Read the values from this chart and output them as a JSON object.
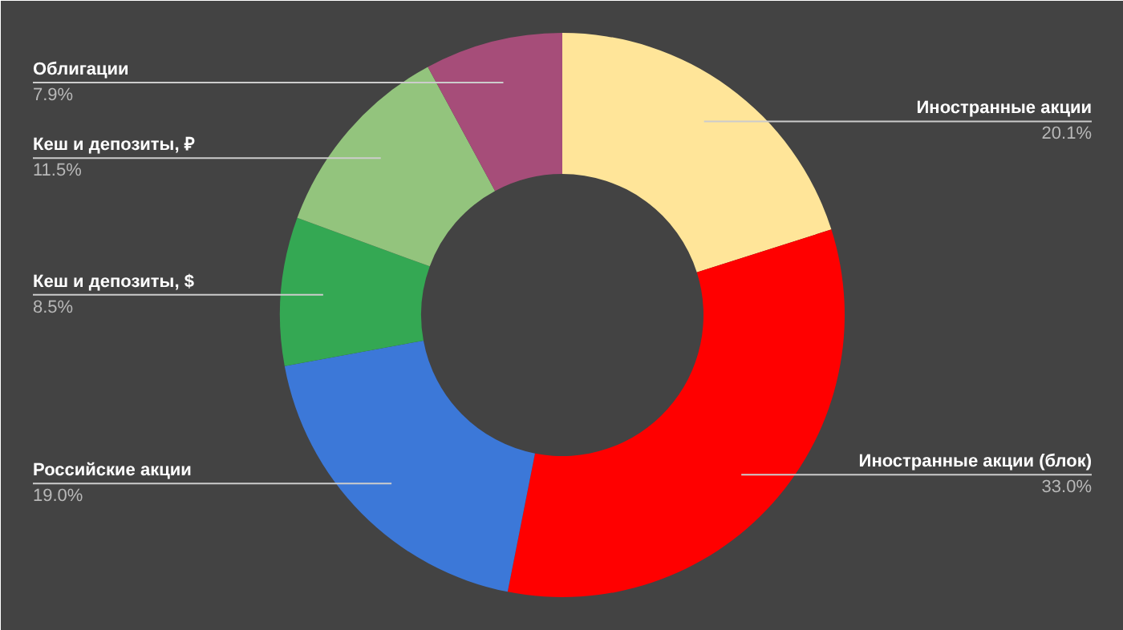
{
  "chart_data": {
    "type": "donut",
    "categories": [
      "Иностранные акции",
      "Иностранные акции (блок)",
      "Российские акции",
      "Кеш и депозиты, $",
      "Кеш и депозиты, ₽",
      "Облигации"
    ],
    "values": [
      20.1,
      33.0,
      19.0,
      8.5,
      11.5,
      7.9
    ],
    "value_labels": [
      "20.1%",
      "33.0%",
      "19.0%",
      "8.5%",
      "11.5%",
      "7.9%"
    ],
    "colors": [
      "#ffe599",
      "#ff0000",
      "#3c78d8",
      "#34a853",
      "#93c47d",
      "#a64d79"
    ]
  }
}
